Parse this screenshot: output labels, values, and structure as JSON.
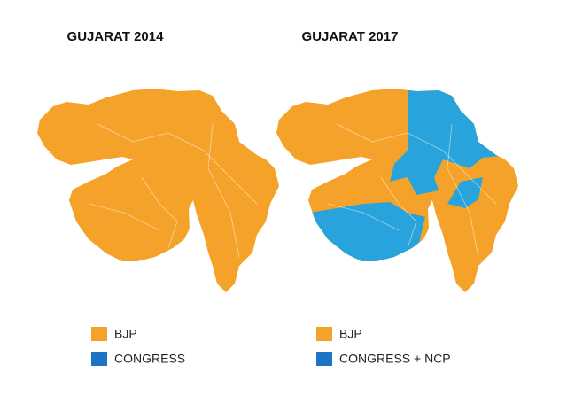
{
  "maps": [
    {
      "title": "GUJARAT 2014",
      "legend": [
        {
          "label": "BJP",
          "color": "#f5a22a"
        },
        {
          "label": "CONGRESS",
          "color": "#1b75c4"
        }
      ]
    },
    {
      "title": "GUJARAT 2017",
      "legend": [
        {
          "label": "BJP",
          "color": "#f5a22a"
        },
        {
          "label": "CONGRESS + NCP",
          "color": "#1b75c4"
        }
      ]
    }
  ]
}
